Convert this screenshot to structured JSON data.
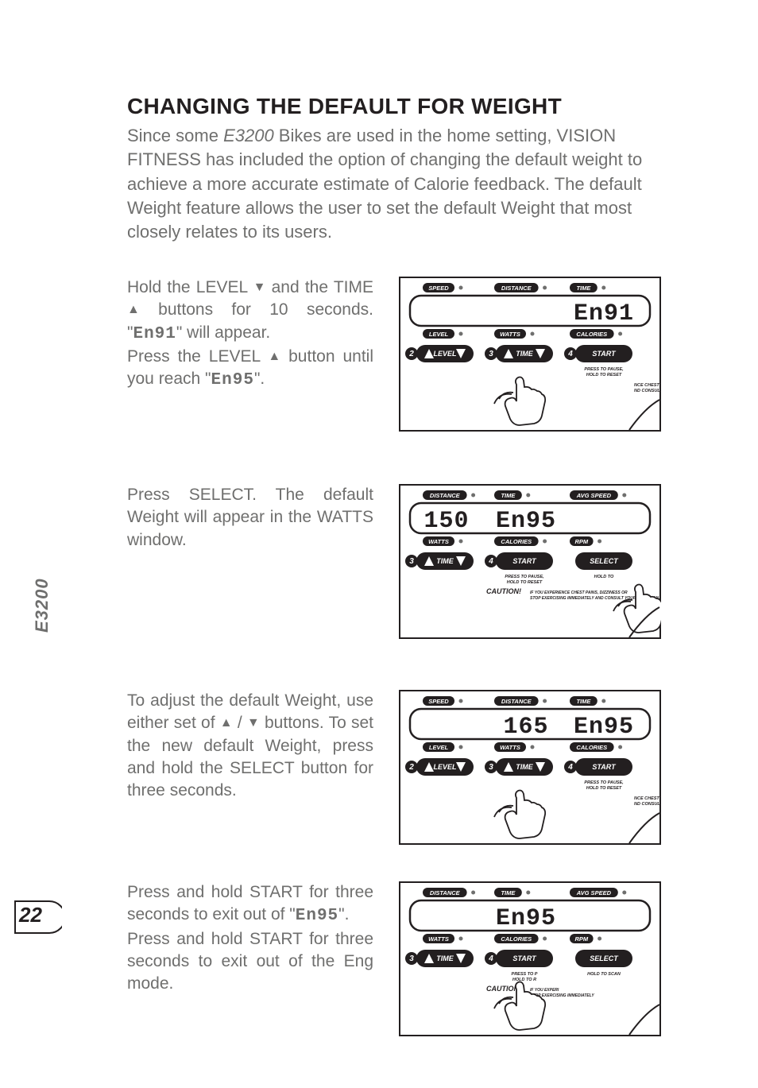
{
  "page": {
    "number": "22",
    "model_tab": "E3200"
  },
  "heading": "CHANGING THE DEFAULT FOR WEIGHT",
  "intro": {
    "prefix": "Since some ",
    "model": "E3200",
    "rest": " Bikes are used in the home setting, VISION FITNESS has included the option of changing the default weight to achieve a more accurate estimate of Calorie feedback. The default Weight feature allows the user to set the default Weight that most closely relates to its users."
  },
  "steps": [
    {
      "text_parts": [
        "Hold the LEVEL ",
        "▼",
        " and the TIME ",
        "▲",
        " buttons for 10 seconds. \"",
        "En91",
        "\" will appear.",
        "\nPress the LEVEL ",
        "▲",
        " button until you reach \"",
        "En95",
        "\"."
      ],
      "panel": {
        "labels_top": [
          "SPEED",
          "DISTANCE",
          "TIME"
        ],
        "labels_bot": [
          "LEVEL",
          "WATTS",
          "CALORIES"
        ],
        "seg_values": [
          "",
          "",
          "En91"
        ],
        "btn_num_left": "2",
        "btn_left": "LEVEL",
        "btn_num_mid": "3",
        "btn_mid": "TIME",
        "btn_num_right": "4",
        "btn_right": "START",
        "right_small": "PRESS TO PAUSE,\nHOLD TO RESET",
        "caution_small": "NCE CHEST PAINS,\nND CONSULT YOU",
        "hands": [
          1
        ]
      }
    },
    {
      "text_parts": [
        "Press SELECT. The default Weight will appear in the WATTS window."
      ],
      "panel": {
        "labels_top": [
          "DISTANCE",
          "TIME",
          "AVG SPEED"
        ],
        "labels_bot": [
          "WATTS",
          "CALORIES",
          "RPM"
        ],
        "seg_values": [
          "150",
          "En95",
          ""
        ],
        "btn_num_left": "3",
        "btn_left": "TIME",
        "btn_num_mid": "4",
        "btn_mid": "START",
        "btn_num_right": "",
        "btn_right": "SELECT",
        "right_small": "HOLD TO",
        "mid_small": "PRESS TO PAUSE,\nHOLD TO RESET",
        "caution": "CAUTION!",
        "caution_sub": "IF YOU EXPERIENCE CHEST PAINS, DIZZINESS OR\nSTOP EXERCISING IMMEDIATELY AND CONSULT YOUR PHYSICIAN BE",
        "hands": [
          2
        ]
      }
    },
    {
      "text_parts": [
        "To adjust the default Weight, use either set of ",
        "▲",
        " / ",
        "▼",
        " buttons. To set the new default Weight, press and hold the SELECT button for three seconds."
      ],
      "panel": {
        "labels_top": [
          "SPEED",
          "DISTANCE",
          "TIME"
        ],
        "labels_bot": [
          "LEVEL",
          "WATTS",
          "CALORIES"
        ],
        "seg_values": [
          "",
          "165",
          "En95"
        ],
        "btn_num_left": "2",
        "btn_left": "LEVEL",
        "btn_num_mid": "3",
        "btn_mid": "TIME",
        "btn_num_right": "4",
        "btn_right": "START",
        "right_small": "PRESS TO PAUSE,\nHOLD TO RESET",
        "caution_small": "NCE CHEST PAINS, D\nND CONSULT YOUR",
        "hands": [
          1
        ]
      }
    },
    {
      "text_parts": [
        "Press and hold START for three seconds to exit out of \"",
        "En95",
        "\".",
        "\nPress and hold START for three seconds to exit out of the Eng mode."
      ],
      "panel": {
        "labels_top": [
          "DISTANCE",
          "TIME",
          "AVG SPEED"
        ],
        "labels_bot": [
          "WATTS",
          "CALORIES",
          "RPM"
        ],
        "seg_values": [
          "",
          "En95",
          ""
        ],
        "btn_num_left": "3",
        "btn_left": "TIME",
        "btn_num_mid": "4",
        "btn_mid": "START",
        "btn_num_right": "",
        "btn_right": "SELECT",
        "right_small": "HOLD TO SCAN",
        "mid_small": "PRESS TO P\nHOLD TO R",
        "caution": "CAUTION!",
        "caution_sub": "IF YOU EXPERI\nSTOP EXERCISING IMMEDIATELY",
        "hands": [
          1
        ]
      }
    }
  ],
  "style": {
    "text_color": "#6f6f6e",
    "heading_color": "#231f20",
    "panel_bg": "#ffffff",
    "panel_stroke": "#231f20",
    "seg_color": "#231f20",
    "dot_color": "#6f6f6e"
  }
}
